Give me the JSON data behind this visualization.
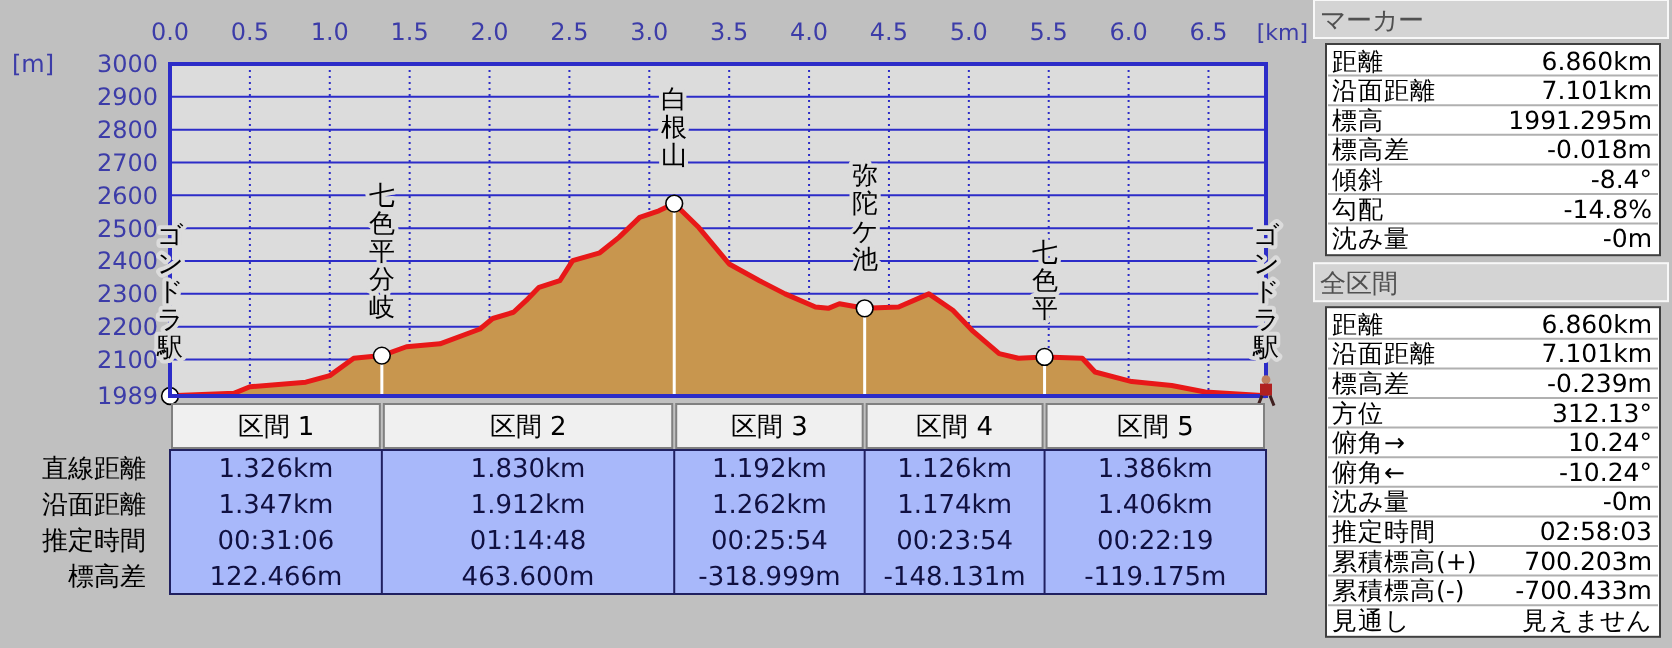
{
  "chart_data": [
    {
      "type": "area",
      "xlabel": "[km]",
      "ylabel": "[m]",
      "xlim": [
        0,
        6.86
      ],
      "ylim": [
        1989,
        3000
      ],
      "xticks": [
        {
          "value": 0,
          "label": "0.0"
        },
        0.5,
        {
          "value": 1,
          "label": "1.0"
        },
        1.5,
        {
          "value": 2,
          "label": "2.0"
        },
        2.5,
        {
          "value": 3,
          "label": "3.0"
        },
        3.5,
        {
          "value": 4,
          "label": "4.0"
        },
        4.5,
        {
          "value": 5,
          "label": "5.0"
        },
        5.5,
        {
          "value": 6,
          "label": "6.0"
        },
        6.5
      ],
      "yticks": [
        1989,
        2100,
        2200,
        2300,
        2400,
        2500,
        2600,
        2700,
        2800,
        2900,
        3000
      ],
      "grid": true,
      "x": [
        0,
        0.4,
        0.5,
        0.85,
        1.0,
        1.15,
        1.326,
        1.48,
        1.69,
        1.94,
        2.02,
        2.15,
        2.23,
        2.31,
        2.44,
        2.52,
        2.69,
        2.81,
        2.94,
        3.06,
        3.156,
        3.31,
        3.5,
        3.69,
        3.85,
        4.04,
        4.12,
        4.19,
        4.348,
        4.56,
        4.75,
        4.9,
        5.02,
        5.19,
        5.31,
        5.474,
        5.71,
        5.79,
        6.02,
        6.27,
        6.48,
        6.86
      ],
      "series": [
        {
          "type": "area",
          "color": "#c8964e",
          "values": [
            1990,
            1997,
            2017,
            2031,
            2051,
            2104,
            2112,
            2139,
            2148,
            2193,
            2225,
            2244,
            2280,
            2320,
            2340,
            2401,
            2425,
            2472,
            2533,
            2553,
            2575,
            2502,
            2391,
            2340,
            2300,
            2260,
            2256,
            2270,
            2256,
            2260,
            2300,
            2250,
            2189,
            2118,
            2104,
            2108,
            2104,
            2062,
            2033,
            2021,
            2001,
            1990
          ]
        },
        {
          "type": "scatter",
          "color": "#ffffff",
          "marker": "circle",
          "x": [
            0,
            1.326,
            3.156,
            4.348,
            5.474
          ],
          "values": [
            1989,
            2112,
            2575,
            2256,
            2108
          ]
        }
      ],
      "annotations": [
        {
          "text": "ゴンドラ駅",
          "x": 0,
          "y": 1989
        },
        {
          "text": "七色平分岐",
          "x": 1.326,
          "y": 2112
        },
        {
          "text": "白根山",
          "x": 3.156,
          "y": 2575
        },
        {
          "text": "弥陀ケ池",
          "x": 4.348,
          "y": 2256
        },
        {
          "text": "七色平",
          "x": 5.474,
          "y": 2108
        },
        {
          "text": "ゴンドラ駅",
          "x": 6.86,
          "y": 1990
        }
      ]
    },
    {
      "type": "other",
      "categories": [
        "区間 1",
        "区間 2",
        "区間 3",
        "区間 4",
        "区間 5"
      ],
      "y_categories": [
        "直線距離",
        "沿面距離",
        "推定時間",
        "標高差"
      ],
      "annotations": [
        "1.326km",
        "1.830km",
        "1.192km",
        "1.126km",
        "1.386km",
        "1.347km",
        "1.912km",
        "1.262km",
        "1.174km",
        "1.406km",
        "00:31:06",
        "01:14:48",
        "00:25:54",
        "00:23:54",
        "00:22:19",
        "122.466m",
        "463.600m",
        "-318.999m",
        "-148.131m",
        "-119.175m"
      ]
    },
    {
      "type": "other",
      "title": "マーカー",
      "y_categories": [
        "距離",
        "沿面距離",
        "標高",
        "標高差",
        "傾斜",
        "勾配",
        "沈み量"
      ],
      "annotations": [
        "6.860km",
        "7.101km",
        "1991.295m",
        "-0.018m",
        "-8.4°",
        "-14.8%",
        "-0m"
      ]
    },
    {
      "type": "other",
      "title": "全区間",
      "y_categories": [
        "距離",
        "沿面距離",
        "標高差",
        "方位",
        "俯角→",
        "俯角←",
        "沈み量",
        "推定時間",
        "累積標高(+)",
        "累積標高(-)",
        "見通し"
      ],
      "annotations": [
        "6.860km",
        "7.101km",
        "-0.239m",
        "312.13°",
        "10.24°",
        "-10.24°",
        "-0m",
        "02:58:03",
        "700.203m",
        "-700.433m",
        "見えません"
      ]
    }
  ]
}
